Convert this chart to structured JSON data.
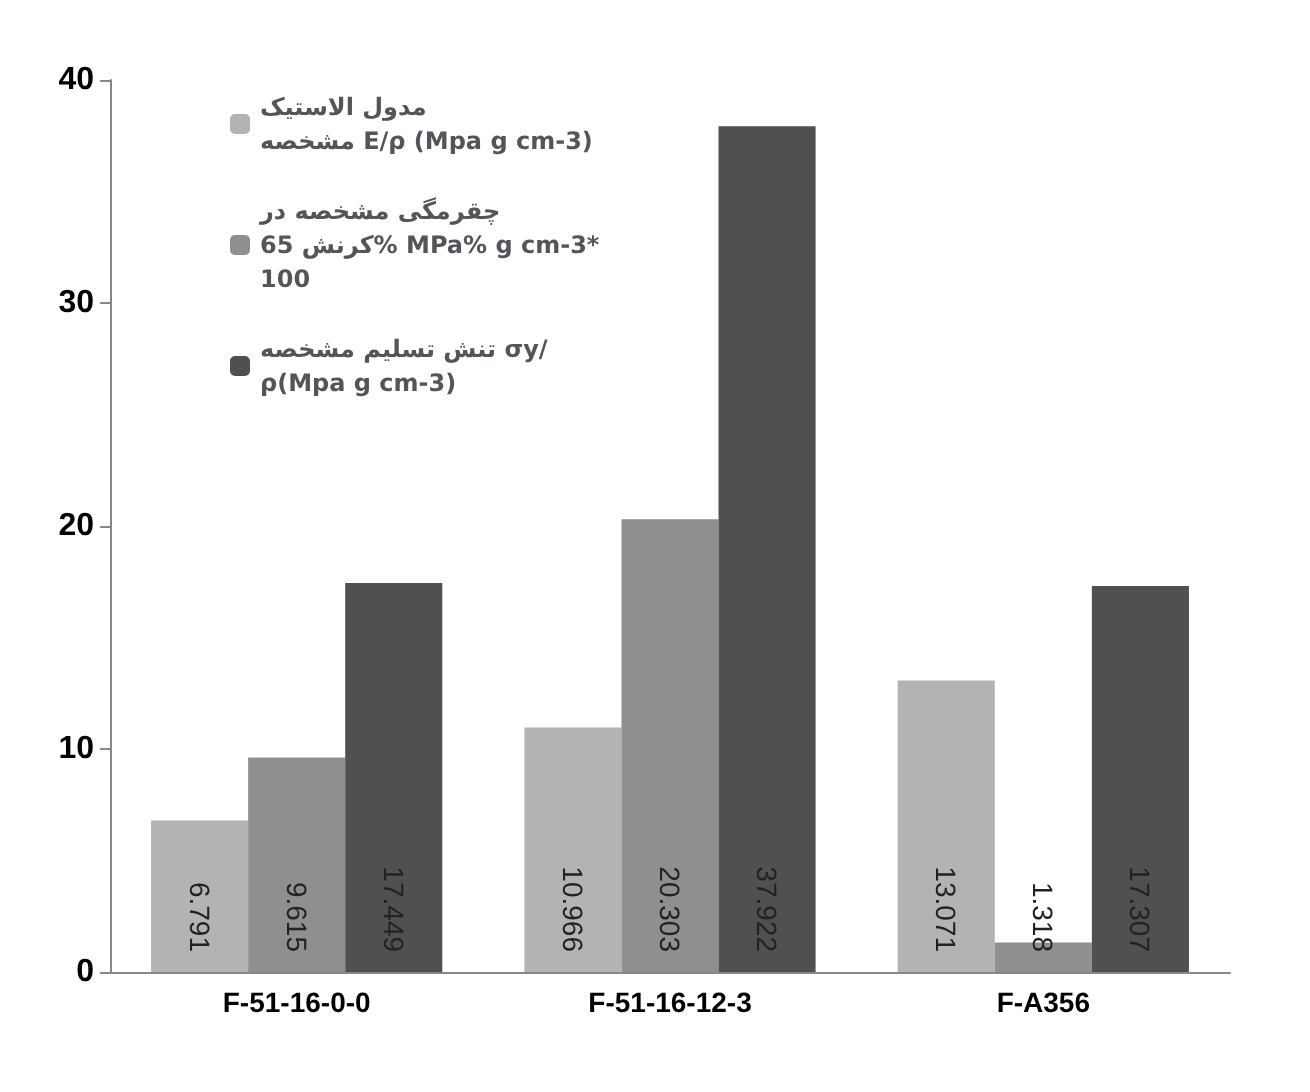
{
  "chart_data": {
    "type": "bar",
    "categories": [
      "F-51-16-0-0",
      "F-51-16-12-3",
      "F-A356"
    ],
    "series": [
      {
        "name": "مدول الاستیک مشخصه E/ρ (Mpa g cm-3)",
        "color": "#b3b3b3",
        "values": [
          6.791,
          10.966,
          13.071
        ]
      },
      {
        "name": "چقرمگی مشخصه در کرنش 65% MPa% g cm-3* 100",
        "color": "#8f8f8f",
        "values": [
          9.615,
          20.303,
          1.318
        ]
      },
      {
        "name": "تنش تسلیم مشخصه σy/ρ(Mpa g cm-3)",
        "color": "#505050",
        "values": [
          17.449,
          37.922,
          17.307
        ]
      }
    ],
    "ylim": [
      0,
      40
    ],
    "yticks": [
      0,
      10,
      20,
      30,
      40
    ],
    "grid": false,
    "legend": "top left",
    "data_labels": true
  }
}
